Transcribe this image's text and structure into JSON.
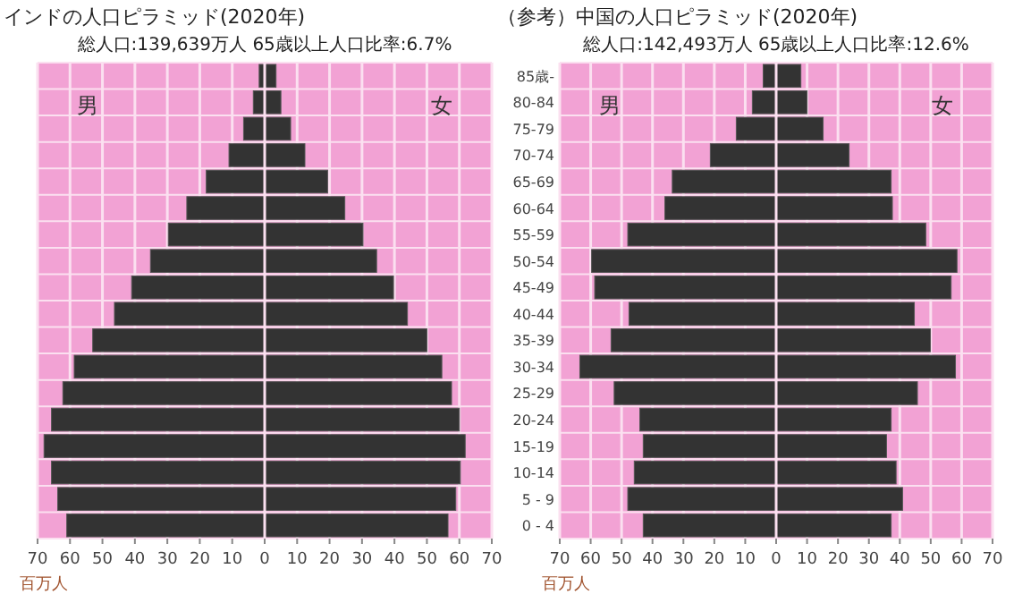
{
  "chart_data": [
    {
      "type": "bar",
      "orientation": "horizontal",
      "stacked": true,
      "title": "インドの人口ピラミッド(2020年)",
      "subtitle": "総人口:139,639万人  65歳以上人口比率:6.7%",
      "categories": [
        null,
        null,
        null,
        null,
        null,
        null,
        null,
        null,
        null,
        null,
        null,
        null,
        null,
        null,
        null,
        null,
        null,
        null
      ],
      "series": [
        {
          "color": "#333333",
          "values": [
            -1.7,
            -3.5,
            -6.5,
            -11,
            -18,
            -24,
            -29.7,
            -35.2,
            -41,
            -46.3,
            -53,
            -58.7,
            -62.2,
            -65.7,
            -68,
            -65.7,
            -63.8,
            -61
          ]
        },
        {
          "color": "#333333",
          "values": [
            3.5,
            5,
            8,
            12.4,
            19.4,
            24.7,
            30.3,
            34.5,
            39.7,
            44,
            50,
            54.6,
            57.6,
            60,
            61.8,
            60.3,
            58.9,
            56.5
          ]
        }
      ],
      "xlim": [
        -70,
        70
      ],
      "xticks": [
        {
          "value": -70,
          "label": "70"
        },
        {
          "value": -60,
          "label": "60"
        },
        {
          "value": -50,
          "label": "50"
        },
        {
          "value": -40,
          "label": "40"
        },
        {
          "value": -30,
          "label": "30"
        },
        {
          "value": -20,
          "label": "20"
        },
        {
          "value": -10,
          "label": "10"
        },
        0,
        10,
        20,
        30,
        40,
        50,
        60,
        70
      ],
      "annotations": [
        "男",
        "女",
        "百万人"
      ],
      "grid": true,
      "bands": [
        {
          "axis": "x",
          "from": -70,
          "to": 70,
          "color": "#f2a2d4"
        }
      ]
    },
    {
      "type": "bar",
      "orientation": "horizontal",
      "stacked": true,
      "title": "（参考）中国の人口ピラミッド(2020年)",
      "subtitle": "総人口:142,493万人  65歳以上人口比率:12.6%",
      "categories": [
        "85歳-",
        "80-84",
        "75-79",
        "70-74",
        "65-69",
        "60-64",
        "55-59",
        "50-54",
        "45-49",
        "40-44",
        "35-39",
        "30-34",
        "25-29",
        "20-24",
        "15-19",
        "10-14",
        "5 - 9",
        "0 - 4"
      ],
      "series": [
        {
          "color": "#333333",
          "values": [
            -4.2,
            -7.7,
            -12.9,
            -21.3,
            -33.6,
            -36,
            -48,
            -59.7,
            -58.7,
            -47.6,
            -53.4,
            -63.5,
            -52.4,
            -44.1,
            -43,
            -45.9,
            -48,
            -43
          ]
        },
        {
          "color": "#333333",
          "values": [
            8,
            10,
            15.2,
            23.6,
            37.2,
            37.6,
            48.4,
            58.5,
            56.6,
            44.7,
            49.9,
            58,
            45.7,
            37.2,
            35.7,
            38.8,
            40.9,
            37.2
          ]
        }
      ],
      "xlim": [
        -70,
        70
      ],
      "xticks": [
        {
          "value": -70,
          "label": "70"
        },
        {
          "value": -60,
          "label": "60"
        },
        {
          "value": -50,
          "label": "50"
        },
        {
          "value": -40,
          "label": "40"
        },
        {
          "value": -30,
          "label": "30"
        },
        {
          "value": -20,
          "label": "20"
        },
        {
          "value": -10,
          "label": "10"
        },
        0,
        10,
        20,
        30,
        40,
        50,
        60,
        70
      ],
      "annotations": [
        "男",
        "女",
        "百万人"
      ],
      "grid": true,
      "bands": [
        {
          "axis": "x",
          "from": -70,
          "to": 70,
          "color": "#f2a2d4"
        }
      ]
    }
  ]
}
